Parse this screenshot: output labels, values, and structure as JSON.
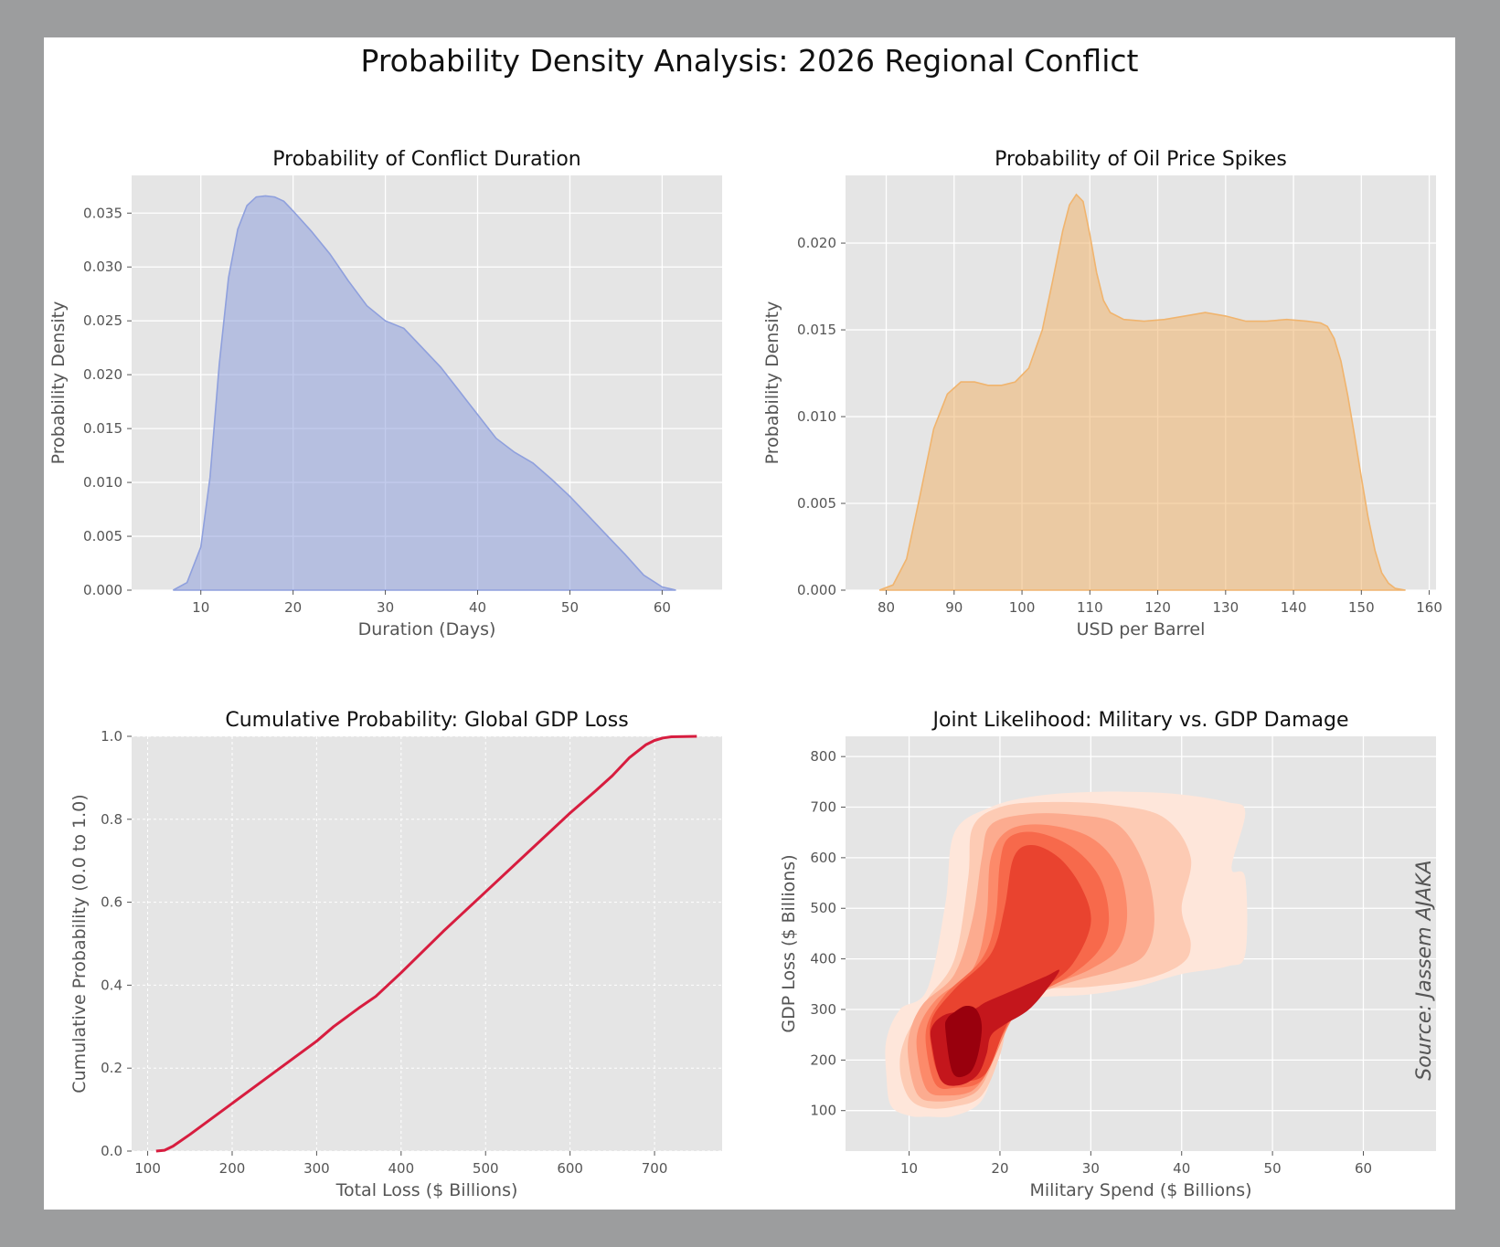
{
  "figure": {
    "title": "Probability Density Analysis: 2026 Regional Conflict"
  },
  "source": "Source: Jassem AJAKA",
  "chart_data": [
    {
      "type": "area",
      "title": "Probability of Conflict Duration",
      "xlabel": "Duration (Days)",
      "ylabel": "Probability Density",
      "xlim": [
        2.5,
        66.5
      ],
      "ylim": [
        0,
        0.0385
      ],
      "xticks": [
        10,
        20,
        30,
        40,
        50,
        60
      ],
      "yticks": [
        0.0,
        0.005,
        0.01,
        0.015,
        0.02,
        0.025,
        0.03,
        0.035
      ],
      "ytick_labels": [
        "0.000",
        "0.005",
        "0.010",
        "0.015",
        "0.020",
        "0.025",
        "0.030",
        "0.035"
      ],
      "color": "#8fa0dd",
      "grid": true,
      "series": [
        {
          "x": [
            7,
            8.5,
            10,
            11,
            12,
            13,
            14,
            15,
            16,
            17,
            18,
            19,
            20,
            22,
            24,
            26,
            28,
            30,
            32,
            34,
            36,
            38,
            40,
            42,
            44,
            46,
            48,
            50,
            52,
            54,
            56,
            58,
            60,
            61,
            61.5
          ],
          "y": [
            0.0,
            0.0007,
            0.004,
            0.0105,
            0.021,
            0.029,
            0.0335,
            0.0357,
            0.0365,
            0.0366,
            0.0365,
            0.0361,
            0.0352,
            0.0333,
            0.0312,
            0.0287,
            0.0264,
            0.025,
            0.0243,
            0.0225,
            0.0207,
            0.0185,
            0.0163,
            0.0141,
            0.0128,
            0.0118,
            0.0103,
            0.0087,
            0.0069,
            0.0051,
            0.0033,
            0.0014,
            0.0003,
            0.0001,
            0.0
          ]
        }
      ]
    },
    {
      "type": "area",
      "title": "Probability of Oil Price Spikes",
      "xlabel": "USD per Barrel",
      "ylabel": "Probability Density",
      "xlim": [
        74,
        161
      ],
      "ylim": [
        0,
        0.0239
      ],
      "xticks": [
        80,
        90,
        100,
        110,
        120,
        130,
        140,
        150,
        160
      ],
      "yticks": [
        0.0,
        0.005,
        0.01,
        0.015,
        0.02
      ],
      "ytick_labels": [
        "0.000",
        "0.005",
        "0.010",
        "0.015",
        "0.020"
      ],
      "color": "#f0b46e",
      "grid": true,
      "series": [
        {
          "x": [
            79,
            81,
            83,
            85,
            87,
            89,
            91,
            93,
            95,
            97,
            99,
            101,
            103,
            104.5,
            106,
            107,
            108,
            109,
            110,
            111,
            112,
            113,
            115,
            118,
            121,
            124,
            127,
            130,
            133,
            136,
            139,
            142,
            144,
            145,
            146,
            147,
            148,
            149,
            150,
            151,
            152,
            153,
            154,
            155,
            156.5
          ],
          "y": [
            0.0,
            0.0003,
            0.0018,
            0.0055,
            0.0093,
            0.0113,
            0.012,
            0.012,
            0.0118,
            0.0118,
            0.012,
            0.0128,
            0.015,
            0.0178,
            0.0207,
            0.0222,
            0.0228,
            0.0224,
            0.0205,
            0.0183,
            0.0167,
            0.016,
            0.0156,
            0.0155,
            0.0156,
            0.0158,
            0.016,
            0.0158,
            0.0155,
            0.0155,
            0.0156,
            0.0155,
            0.0154,
            0.0152,
            0.0145,
            0.0132,
            0.0112,
            0.0089,
            0.0065,
            0.0042,
            0.0023,
            0.001,
            0.0004,
            0.0001,
            0.0
          ]
        }
      ]
    },
    {
      "type": "line",
      "title": "Cumulative Probability: Global GDP Loss",
      "xlabel": "Total Loss ($ Billions)",
      "ylabel": "Cumulative Probability (0.0 to 1.0)",
      "xlim": [
        81,
        780
      ],
      "ylim": [
        0,
        1.0
      ],
      "xticks": [
        100,
        200,
        300,
        400,
        500,
        600,
        700
      ],
      "yticks": [
        0.0,
        0.2,
        0.4,
        0.6,
        0.8,
        1.0
      ],
      "ytick_labels": [
        "0.0",
        "0.2",
        "0.4",
        "0.6",
        "0.8",
        "1.0"
      ],
      "color": "#d71d3f",
      "grid": true,
      "series": [
        {
          "x": [
            110,
            120,
            130,
            150,
            200,
            250,
            300,
            320,
            350,
            370,
            400,
            450,
            500,
            550,
            600,
            630,
            650,
            670,
            690,
            700,
            710,
            720,
            750
          ],
          "y": [
            0.0,
            0.002,
            0.012,
            0.04,
            0.115,
            0.19,
            0.265,
            0.3,
            0.345,
            0.373,
            0.43,
            0.53,
            0.625,
            0.72,
            0.815,
            0.868,
            0.905,
            0.948,
            0.98,
            0.99,
            0.996,
            0.999,
            1.0
          ]
        }
      ]
    },
    {
      "type": "contour",
      "title": "Joint Likelihood: Military vs. GDP Damage",
      "xlabel": "Military Spend ($ Billions)",
      "ylabel": "GDP Loss ($ Billions)",
      "xlim": [
        3,
        68
      ],
      "ylim": [
        20,
        840
      ],
      "xticks": [
        10,
        20,
        30,
        40,
        50,
        60
      ],
      "yticks": [
        100,
        200,
        300,
        400,
        500,
        600,
        700,
        800
      ],
      "ytick_labels": [
        "100",
        "200",
        "300",
        "400",
        "500",
        "600",
        "700",
        "800"
      ],
      "grid": true,
      "colors": [
        "#fee6da",
        "#fdcbb4",
        "#fcab8f",
        "#fc8a6a",
        "#f7694b",
        "#e9432f",
        "#c4161c",
        "#99000d"
      ],
      "levels": [
        {
          "x": [
            7.5,
            8,
            10,
            12,
            15,
            18,
            19.5,
            20,
            20.5,
            22,
            25,
            30,
            35,
            40,
            45,
            47,
            47,
            45.5,
            47,
            45,
            40,
            35,
            30,
            24,
            19,
            15,
            14,
            12,
            9,
            7.5
          ],
          "y": [
            170,
            110,
            90,
            88,
            90,
            120,
            200,
            290,
            310,
            320,
            325,
            330,
            345,
            370,
            385,
            410,
            560,
            580,
            690,
            710,
            725,
            730,
            730,
            722,
            700,
            650,
            510,
            340,
            300,
            240
          ]
        },
        {
          "x": [
            9,
            10,
            12,
            15,
            18,
            20,
            21,
            22,
            25,
            30,
            36,
            40,
            41,
            40,
            41,
            38,
            32,
            25,
            20,
            17,
            16.5,
            15,
            12,
            9.5
          ],
          "y": [
            180,
            125,
            105,
            108,
            130,
            210,
            290,
            320,
            340,
            345,
            360,
            390,
            430,
            500,
            600,
            680,
            705,
            710,
            700,
            660,
            560,
            400,
            320,
            240
          ]
        },
        {
          "x": [
            10,
            11,
            13,
            16,
            18,
            20,
            22,
            24,
            28,
            33,
            36,
            37,
            36,
            33,
            28,
            23,
            19,
            18,
            17,
            15,
            11.5,
            10
          ],
          "y": [
            190,
            130,
            118,
            125,
            150,
            230,
            305,
            330,
            355,
            380,
            410,
            480,
            580,
            665,
            685,
            686,
            665,
            600,
            480,
            370,
            310,
            250
          ]
        },
        {
          "x": [
            11,
            12,
            14,
            17,
            19,
            21,
            23,
            26,
            30,
            33,
            34,
            33,
            30,
            25,
            21,
            19,
            18.5,
            17,
            13,
            11
          ],
          "y": [
            200,
            140,
            130,
            140,
            190,
            270,
            320,
            350,
            380,
            420,
            490,
            580,
            640,
            665,
            655,
            600,
            480,
            380,
            320,
            260
          ]
        },
        {
          "x": [
            12,
            13,
            15,
            18,
            20,
            22,
            24,
            28,
            31,
            32,
            31,
            28,
            24,
            21,
            20,
            19.5,
            18,
            14,
            12
          ],
          "y": [
            210,
            150,
            145,
            160,
            240,
            300,
            330,
            370,
            420,
            480,
            560,
            620,
            650,
            640,
            590,
            480,
            400,
            330,
            270
          ]
        },
        {
          "x": [
            12.5,
            13.5,
            16,
            18.5,
            20.5,
            22.5,
            25,
            28,
            30,
            29,
            26.5,
            23.5,
            21.5,
            20.5,
            19,
            15,
            12.5
          ],
          "y": [
            220,
            165,
            158,
            175,
            260,
            320,
            345,
            390,
            470,
            540,
            600,
            625,
            600,
            500,
            410,
            340,
            280
          ]
        },
        {
          "x": [
            12.5,
            13.5,
            15.5,
            17.5,
            18.5,
            19,
            20.5,
            23.5,
            26.5,
            25,
            21.5,
            18.5,
            17,
            14,
            12.5
          ],
          "y": [
            230,
            160,
            150,
            170,
            210,
            248,
            270,
            305,
            375,
            365,
            338,
            315,
            300,
            290,
            265
          ]
        },
        {
          "x": [
            14,
            14.8,
            16.5,
            17.5,
            18,
            17.4,
            16.2,
            15,
            14.2
          ],
          "y": [
            260,
            175,
            172,
            205,
            265,
            300,
            307,
            295,
            282
          ]
        }
      ]
    }
  ]
}
